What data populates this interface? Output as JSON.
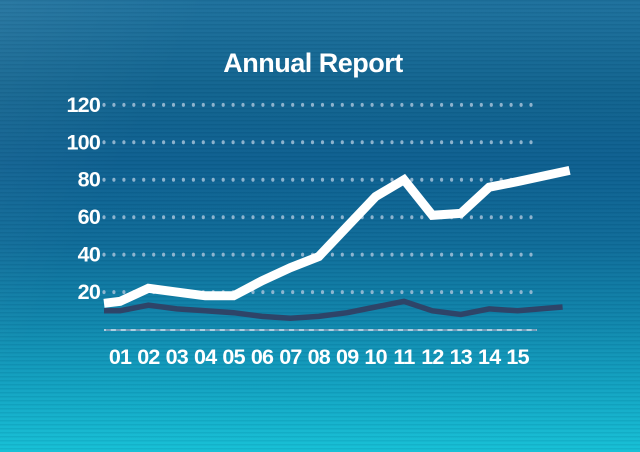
{
  "chart_data": {
    "type": "line",
    "title": "Annual Report",
    "categories": [
      "01",
      "02",
      "03",
      "04",
      "05",
      "06",
      "07",
      "08",
      "09",
      "10",
      "11",
      "12",
      "13",
      "14",
      "15"
    ],
    "series": [
      {
        "name": "primary-trend-white",
        "color": "#ffffff",
        "values": [
          15,
          22,
          20,
          18,
          18,
          26,
          33,
          39,
          55,
          71,
          80,
          61,
          62,
          76,
          79
        ],
        "lead_in_value": 14,
        "lead_out_value": 85
      },
      {
        "name": "secondary-trend-navy",
        "color": "#2e4468",
        "values": [
          10,
          13,
          11,
          10,
          9,
          7,
          6,
          7,
          9,
          12,
          15,
          10,
          8,
          11,
          10
        ],
        "lead_in_value": 10,
        "lead_out_value": 12
      }
    ],
    "y_axis": {
      "ticks": [
        120,
        100,
        80,
        60,
        40,
        20
      ],
      "range": [
        0,
        130
      ]
    },
    "x_axis": {
      "baseline_shown": true
    },
    "gridlines": "dotted-rows",
    "legend": "none"
  },
  "style": {
    "background_top": "#1d719d",
    "background_mid": "#0d6090",
    "background_bottom": "#15c0d6",
    "grid_dot_color": "#a3c1d8",
    "axis_label_color": "#ffffff",
    "baseline_color": "#aecfe0",
    "baseline_dash_color": "#5d87aa"
  }
}
